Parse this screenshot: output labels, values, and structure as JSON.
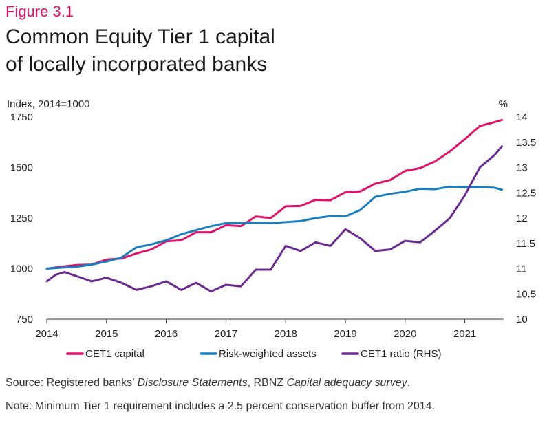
{
  "figure": {
    "label": "Figure 3.1",
    "title_line1": "Common Equity Tier 1 capital",
    "title_line2": "of locally incorporated banks"
  },
  "source": {
    "prefix": "Source: Registered banks’ ",
    "italic1": "Disclosure Statements",
    "middle": ", RBNZ ",
    "italic2": "Capital adequacy survey",
    "suffix": "."
  },
  "note": "Note: Minimum Tier 1 requirement includes a 2.5 percent conservation buffer from 2014.",
  "colors": {
    "cet1_capital": "#e0136b",
    "rwa": "#1a7fc1",
    "cet1_ratio": "#6a2a8f"
  },
  "chart_data": {
    "type": "line",
    "left_axis": {
      "label": "Index, 2014=1000",
      "ylim": [
        750,
        1750
      ],
      "ticks": [
        750,
        1000,
        1250,
        1500,
        1750
      ]
    },
    "right_axis": {
      "label": "%",
      "ylim": [
        10,
        14
      ],
      "ticks": [
        "10",
        "10.5",
        "11",
        "11.5",
        "12",
        "12.5",
        "13",
        "13.5",
        "14"
      ]
    },
    "x_axis": {
      "range": [
        2014,
        2021.65
      ],
      "ticks": [
        2014,
        2015,
        2016,
        2017,
        2018,
        2019,
        2020,
        2021
      ]
    },
    "legend_position": "bottom",
    "series": [
      {
        "name": "CET1 capital",
        "axis": "left",
        "color": "#e0136b",
        "points": [
          [
            2014.0,
            1000
          ],
          [
            2014.25,
            1010
          ],
          [
            2014.5,
            1018
          ],
          [
            2014.75,
            1020
          ],
          [
            2015.0,
            1045
          ],
          [
            2015.25,
            1050
          ],
          [
            2015.5,
            1075
          ],
          [
            2015.75,
            1095
          ],
          [
            2016.0,
            1135
          ],
          [
            2016.25,
            1140
          ],
          [
            2016.5,
            1180
          ],
          [
            2016.75,
            1180
          ],
          [
            2017.0,
            1215
          ],
          [
            2017.25,
            1210
          ],
          [
            2017.5,
            1258
          ],
          [
            2017.75,
            1250
          ],
          [
            2018.0,
            1308
          ],
          [
            2018.25,
            1310
          ],
          [
            2018.5,
            1340
          ],
          [
            2018.75,
            1338
          ],
          [
            2019.0,
            1378
          ],
          [
            2019.25,
            1382
          ],
          [
            2019.5,
            1420
          ],
          [
            2019.75,
            1438
          ],
          [
            2020.0,
            1483
          ],
          [
            2020.25,
            1497
          ],
          [
            2020.5,
            1530
          ],
          [
            2020.75,
            1580
          ],
          [
            2021.0,
            1640
          ],
          [
            2021.25,
            1705
          ],
          [
            2021.5,
            1725
          ],
          [
            2021.62,
            1735
          ]
        ]
      },
      {
        "name": "Risk-weighted assets",
        "axis": "left",
        "color": "#1a7fc1",
        "points": [
          [
            2014.0,
            1000
          ],
          [
            2014.25,
            1005
          ],
          [
            2014.5,
            1010
          ],
          [
            2014.75,
            1020
          ],
          [
            2015.0,
            1035
          ],
          [
            2015.25,
            1055
          ],
          [
            2015.5,
            1105
          ],
          [
            2015.75,
            1120
          ],
          [
            2016.0,
            1140
          ],
          [
            2016.25,
            1170
          ],
          [
            2016.5,
            1190
          ],
          [
            2016.75,
            1210
          ],
          [
            2017.0,
            1225
          ],
          [
            2017.25,
            1225
          ],
          [
            2017.5,
            1228
          ],
          [
            2017.75,
            1225
          ],
          [
            2018.0,
            1230
          ],
          [
            2018.25,
            1235
          ],
          [
            2018.5,
            1250
          ],
          [
            2018.75,
            1260
          ],
          [
            2019.0,
            1258
          ],
          [
            2019.25,
            1290
          ],
          [
            2019.5,
            1355
          ],
          [
            2019.75,
            1370
          ],
          [
            2020.0,
            1380
          ],
          [
            2020.25,
            1395
          ],
          [
            2020.5,
            1393
          ],
          [
            2020.75,
            1405
          ],
          [
            2021.0,
            1403
          ],
          [
            2021.25,
            1403
          ],
          [
            2021.5,
            1400
          ],
          [
            2021.62,
            1390
          ]
        ]
      },
      {
        "name": "CET1 ratio (RHS)",
        "axis": "right",
        "color": "#6a2a8f",
        "points": [
          [
            2014.0,
            10.75
          ],
          [
            2014.15,
            10.88
          ],
          [
            2014.3,
            10.93
          ],
          [
            2014.5,
            10.85
          ],
          [
            2014.75,
            10.75
          ],
          [
            2015.0,
            10.82
          ],
          [
            2015.25,
            10.72
          ],
          [
            2015.5,
            10.58
          ],
          [
            2015.75,
            10.65
          ],
          [
            2016.0,
            10.75
          ],
          [
            2016.25,
            10.58
          ],
          [
            2016.5,
            10.72
          ],
          [
            2016.75,
            10.55
          ],
          [
            2017.0,
            10.68
          ],
          [
            2017.25,
            10.65
          ],
          [
            2017.5,
            10.98
          ],
          [
            2017.75,
            10.98
          ],
          [
            2018.0,
            11.45
          ],
          [
            2018.25,
            11.35
          ],
          [
            2018.5,
            11.52
          ],
          [
            2018.75,
            11.45
          ],
          [
            2019.0,
            11.78
          ],
          [
            2019.25,
            11.6
          ],
          [
            2019.5,
            11.35
          ],
          [
            2019.75,
            11.38
          ],
          [
            2020.0,
            11.55
          ],
          [
            2020.25,
            11.52
          ],
          [
            2020.5,
            11.75
          ],
          [
            2020.75,
            12.0
          ],
          [
            2021.0,
            12.45
          ],
          [
            2021.25,
            13.0
          ],
          [
            2021.5,
            13.25
          ],
          [
            2021.62,
            13.42
          ]
        ]
      }
    ]
  }
}
